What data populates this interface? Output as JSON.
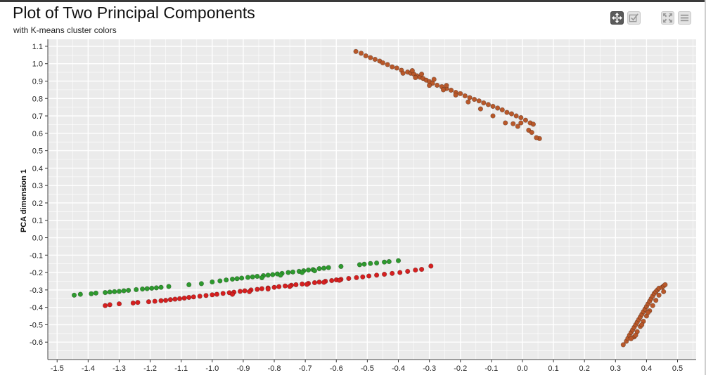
{
  "title": "Plot of Two Principal Components",
  "subtitle": "with K-means cluster colors",
  "toolbar": {
    "pan_icon": "move-arrows-icon",
    "select_icon": "box-select-icon",
    "fullscreen_icon": "expand-icon",
    "menu_icon": "hamburger-menu-icon"
  },
  "colors": {
    "plot_background": "#ebebeb",
    "grid": "#ffffff",
    "cluster_1": "#b8582a",
    "cluster_2": "#2e9a2e",
    "cluster_3": "#d61f1f"
  },
  "chart_data": {
    "type": "scatter",
    "title": "Plot of Two Principal Components",
    "subtitle": "with K-means cluster colors",
    "xlabel": "",
    "ylabel": "PCA dimension 1",
    "xlim": [
      -1.53,
      0.56
    ],
    "ylim": [
      -0.7,
      1.14
    ],
    "xticks": [
      -1.5,
      -1.4,
      -1.3,
      -1.2,
      -1.1,
      -1.0,
      -0.9,
      -0.8,
      -0.7,
      -0.6,
      -0.5,
      -0.4,
      -0.3,
      -0.2,
      -0.1,
      0.0,
      0.1,
      0.2,
      0.3,
      0.4,
      0.5
    ],
    "yticks": [
      -0.6,
      -0.5,
      -0.4,
      -0.3,
      -0.2,
      -0.1,
      0.0,
      0.1,
      0.2,
      0.3,
      0.4,
      0.5,
      0.6,
      0.7,
      0.8,
      0.9,
      1.0,
      1.1
    ],
    "xtick_labels": [
      "-1.5",
      "-1.4",
      "-1.3",
      "-1.2",
      "-1.1",
      "-1.0",
      "-0.9",
      "-0.8",
      "-0.7",
      "-0.6",
      "-0.5",
      "-0.4",
      "-0.3",
      "-0.2",
      "-0.1",
      "0.0",
      "0.1",
      "0.2",
      "0.3",
      "0.4",
      "0.5"
    ],
    "ytick_labels": [
      "-0.6",
      "-0.5",
      "-0.4",
      "-0.3",
      "-0.2",
      "-0.1",
      "0.0",
      "0.1",
      "0.2",
      "0.3",
      "0.4",
      "0.5",
      "0.6",
      "0.7",
      "0.8",
      "0.9",
      "1.0",
      "1.1"
    ],
    "grid": true,
    "legend": "none",
    "series": [
      {
        "color": "#b8582a",
        "points": [
          [
            -0.537,
            1.07
          ],
          [
            -0.52,
            1.06
          ],
          [
            -0.505,
            1.045
          ],
          [
            -0.49,
            1.035
          ],
          [
            -0.475,
            1.025
          ],
          [
            -0.46,
            1.015
          ],
          [
            -0.45,
            1.005
          ],
          [
            -0.435,
            0.995
          ],
          [
            -0.42,
            0.982
          ],
          [
            -0.405,
            0.975
          ],
          [
            -0.39,
            0.962
          ],
          [
            -0.37,
            0.952
          ],
          [
            -0.36,
            0.945
          ],
          [
            -0.35,
            0.94
          ],
          [
            -0.34,
            0.93
          ],
          [
            -0.33,
            0.922
          ],
          [
            -0.32,
            0.915
          ],
          [
            -0.31,
            0.905
          ],
          [
            -0.3,
            0.897
          ],
          [
            -0.29,
            0.888
          ],
          [
            -0.275,
            0.876
          ],
          [
            -0.26,
            0.868
          ],
          [
            -0.245,
            0.857
          ],
          [
            -0.23,
            0.848
          ],
          [
            -0.215,
            0.835
          ],
          [
            -0.2,
            0.828
          ],
          [
            -0.185,
            0.815
          ],
          [
            -0.17,
            0.805
          ],
          [
            -0.155,
            0.795
          ],
          [
            -0.14,
            0.786
          ],
          [
            -0.125,
            0.775
          ],
          [
            -0.11,
            0.765
          ],
          [
            -0.095,
            0.755
          ],
          [
            -0.08,
            0.745
          ],
          [
            -0.065,
            0.735
          ],
          [
            -0.05,
            0.72
          ],
          [
            -0.035,
            0.712
          ],
          [
            -0.02,
            0.7
          ],
          [
            -0.005,
            0.69
          ],
          [
            0.01,
            0.675
          ],
          [
            0.025,
            0.66
          ],
          [
            0.035,
            0.652
          ],
          [
            0.055,
            0.57
          ],
          [
            0.045,
            0.575
          ],
          [
            0.02,
            0.618
          ],
          [
            -0.015,
            0.64
          ],
          [
            -0.055,
            0.66
          ],
          [
            -0.095,
            0.7
          ],
          [
            -0.135,
            0.74
          ],
          [
            -0.175,
            0.78
          ],
          [
            -0.215,
            0.82
          ],
          [
            -0.255,
            0.85
          ],
          [
            -0.3,
            0.875
          ],
          [
            -0.345,
            0.92
          ],
          [
            -0.385,
            0.945
          ],
          [
            -0.355,
            0.96
          ],
          [
            -0.325,
            0.94
          ],
          [
            -0.285,
            0.91
          ],
          [
            -0.245,
            0.875
          ],
          [
            -0.005,
            0.66
          ],
          [
            0.03,
            0.605
          ],
          [
            -0.03,
            0.655
          ],
          [
            0.325,
            -0.615
          ],
          [
            0.335,
            -0.595
          ],
          [
            0.34,
            -0.578
          ],
          [
            0.345,
            -0.56
          ],
          [
            0.35,
            -0.545
          ],
          [
            0.355,
            -0.53
          ],
          [
            0.36,
            -0.515
          ],
          [
            0.365,
            -0.5
          ],
          [
            0.37,
            -0.485
          ],
          [
            0.375,
            -0.47
          ],
          [
            0.38,
            -0.455
          ],
          [
            0.385,
            -0.44
          ],
          [
            0.39,
            -0.425
          ],
          [
            0.395,
            -0.41
          ],
          [
            0.4,
            -0.395
          ],
          [
            0.405,
            -0.38
          ],
          [
            0.41,
            -0.365
          ],
          [
            0.415,
            -0.35
          ],
          [
            0.42,
            -0.335
          ],
          [
            0.425,
            -0.32
          ],
          [
            0.43,
            -0.31
          ],
          [
            0.435,
            -0.3
          ],
          [
            0.44,
            -0.29
          ],
          [
            0.45,
            -0.285
          ],
          [
            0.455,
            -0.277
          ],
          [
            0.46,
            -0.27
          ],
          [
            0.36,
            -0.57
          ],
          [
            0.37,
            -0.54
          ],
          [
            0.38,
            -0.51
          ],
          [
            0.39,
            -0.48
          ],
          [
            0.4,
            -0.45
          ],
          [
            0.41,
            -0.42
          ],
          [
            0.42,
            -0.39
          ],
          [
            0.43,
            -0.36
          ],
          [
            0.44,
            -0.33
          ],
          [
            0.455,
            -0.31
          ],
          [
            0.35,
            -0.58
          ],
          [
            0.365,
            -0.56
          ],
          [
            0.385,
            -0.5
          ],
          [
            0.405,
            -0.43
          ]
        ]
      },
      {
        "color": "#2e9a2e",
        "points": [
          [
            -1.445,
            -0.33
          ],
          [
            -1.425,
            -0.325
          ],
          [
            -1.39,
            -0.322
          ],
          [
            -1.375,
            -0.318
          ],
          [
            -1.345,
            -0.315
          ],
          [
            -1.33,
            -0.312
          ],
          [
            -1.315,
            -0.31
          ],
          [
            -1.3,
            -0.308
          ],
          [
            -1.285,
            -0.305
          ],
          [
            -1.27,
            -0.302
          ],
          [
            -1.245,
            -0.298
          ],
          [
            -1.225,
            -0.295
          ],
          [
            -1.21,
            -0.293
          ],
          [
            -1.195,
            -0.29
          ],
          [
            -1.18,
            -0.288
          ],
          [
            -1.165,
            -0.285
          ],
          [
            -1.14,
            -0.28
          ],
          [
            -1.075,
            -0.27
          ],
          [
            -1.035,
            -0.264
          ],
          [
            -1.0,
            -0.254
          ],
          [
            -0.975,
            -0.248
          ],
          [
            -0.955,
            -0.243
          ],
          [
            -0.935,
            -0.238
          ],
          [
            -0.92,
            -0.235
          ],
          [
            -0.905,
            -0.232
          ],
          [
            -0.885,
            -0.228
          ],
          [
            -0.87,
            -0.225
          ],
          [
            -0.855,
            -0.222
          ],
          [
            -0.835,
            -0.218
          ],
          [
            -0.82,
            -0.215
          ],
          [
            -0.805,
            -0.212
          ],
          [
            -0.79,
            -0.208
          ],
          [
            -0.775,
            -0.205
          ],
          [
            -0.755,
            -0.2
          ],
          [
            -0.74,
            -0.197
          ],
          [
            -0.72,
            -0.193
          ],
          [
            -0.705,
            -0.19
          ],
          [
            -0.69,
            -0.186
          ],
          [
            -0.675,
            -0.183
          ],
          [
            -0.655,
            -0.178
          ],
          [
            -0.64,
            -0.175
          ],
          [
            -0.625,
            -0.172
          ],
          [
            -0.585,
            -0.165
          ],
          [
            -0.525,
            -0.155
          ],
          [
            -0.51,
            -0.152
          ],
          [
            -0.49,
            -0.148
          ],
          [
            -0.47,
            -0.145
          ],
          [
            -0.445,
            -0.14
          ],
          [
            -0.43,
            -0.137
          ],
          [
            -0.4,
            -0.132
          ],
          [
            -0.84,
            -0.23
          ],
          [
            -0.78,
            -0.215
          ],
          [
            -0.71,
            -0.2
          ],
          [
            -0.67,
            -0.19
          ]
        ]
      },
      {
        "color": "#d61f1f",
        "points": [
          [
            -1.345,
            -0.39
          ],
          [
            -1.33,
            -0.385
          ],
          [
            -1.3,
            -0.38
          ],
          [
            -1.255,
            -0.375
          ],
          [
            -1.24,
            -0.372
          ],
          [
            -1.205,
            -0.368
          ],
          [
            -1.185,
            -0.365
          ],
          [
            -1.165,
            -0.362
          ],
          [
            -1.15,
            -0.36
          ],
          [
            -1.135,
            -0.356
          ],
          [
            -1.12,
            -0.353
          ],
          [
            -1.105,
            -0.35
          ],
          [
            -1.09,
            -0.347
          ],
          [
            -1.075,
            -0.343
          ],
          [
            -1.06,
            -0.34
          ],
          [
            -1.04,
            -0.336
          ],
          [
            -1.02,
            -0.332
          ],
          [
            -1.0,
            -0.328
          ],
          [
            -0.985,
            -0.325
          ],
          [
            -0.965,
            -0.32
          ],
          [
            -0.945,
            -0.316
          ],
          [
            -0.93,
            -0.313
          ],
          [
            -0.91,
            -0.308
          ],
          [
            -0.895,
            -0.305
          ],
          [
            -0.875,
            -0.3
          ],
          [
            -0.855,
            -0.297
          ],
          [
            -0.84,
            -0.293
          ],
          [
            -0.82,
            -0.289
          ],
          [
            -0.8,
            -0.285
          ],
          [
            -0.785,
            -0.281
          ],
          [
            -0.765,
            -0.277
          ],
          [
            -0.745,
            -0.273
          ],
          [
            -0.73,
            -0.27
          ],
          [
            -0.71,
            -0.266
          ],
          [
            -0.69,
            -0.262
          ],
          [
            -0.67,
            -0.258
          ],
          [
            -0.655,
            -0.255
          ],
          [
            -0.635,
            -0.25
          ],
          [
            -0.615,
            -0.246
          ],
          [
            -0.6,
            -0.242
          ],
          [
            -0.585,
            -0.239
          ],
          [
            -0.56,
            -0.234
          ],
          [
            -0.535,
            -0.229
          ],
          [
            -0.515,
            -0.225
          ],
          [
            -0.495,
            -0.22
          ],
          [
            -0.47,
            -0.215
          ],
          [
            -0.445,
            -0.21
          ],
          [
            -0.42,
            -0.205
          ],
          [
            -0.395,
            -0.2
          ],
          [
            -0.37,
            -0.193
          ],
          [
            -0.345,
            -0.186
          ],
          [
            -0.325,
            -0.182
          ],
          [
            -0.295,
            -0.163
          ],
          [
            -0.935,
            -0.325
          ],
          [
            -0.88,
            -0.31
          ],
          [
            -0.82,
            -0.295
          ],
          [
            -0.75,
            -0.28
          ],
          [
            -0.695,
            -0.268
          ],
          [
            -0.64,
            -0.256
          ],
          [
            -0.59,
            -0.245
          ]
        ]
      }
    ]
  }
}
